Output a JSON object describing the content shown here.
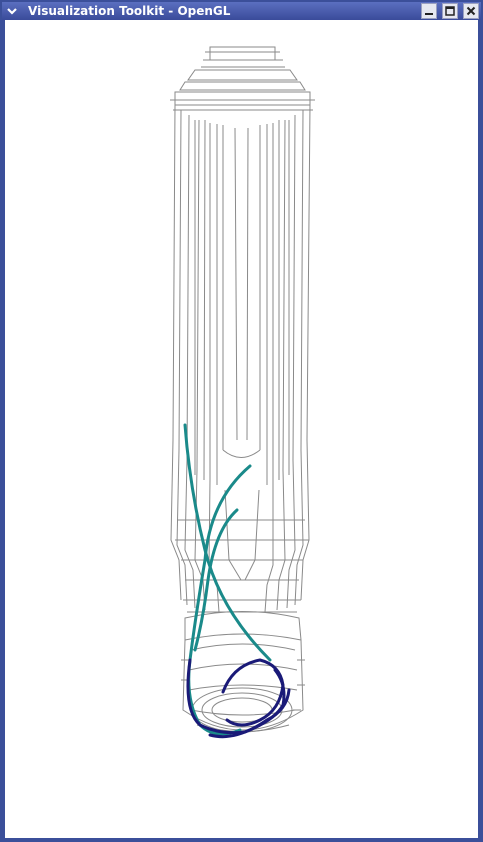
{
  "window": {
    "title": "Visualization Toolkit - OpenGL",
    "icons": {
      "menu": "chevron-down-icon",
      "minimize": "minimize-icon",
      "maximize": "maximize-icon",
      "close": "close-icon"
    }
  },
  "colors": {
    "titlebar": "#3b4f9a",
    "mesh": "#8a8a8a",
    "streamline_dark": "#1a1a78",
    "streamline_teal": "#1a8a8a",
    "background": "#ffffff"
  }
}
